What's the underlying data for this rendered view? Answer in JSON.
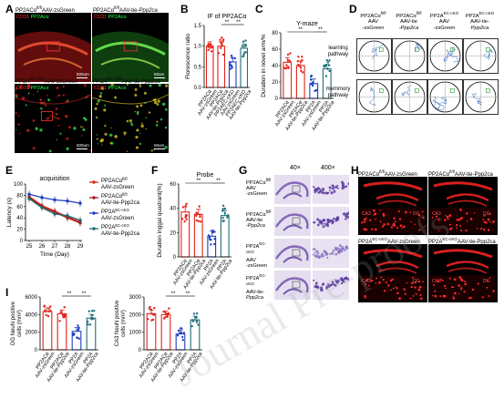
{
  "panels": {
    "A": {
      "letter": "A",
      "tiles": [
        {
          "header_parts": [
            "PP2ACα",
            "fl/fl",
            "AAV-zsGreen"
          ],
          "channel_left": "CD31",
          "channel_right": "PP2Acα",
          "scale": "500um",
          "kind": "wide-red"
        },
        {
          "header_parts": [
            "PP2ACα",
            "fl/fl",
            "AAV-tie-",
            "Ppp2ca"
          ],
          "channel_left": "CD31",
          "channel_right": "PP2Acα",
          "scale": "50um",
          "kind": "wide-green"
        },
        {
          "header_parts": [
            "PP2A",
            "EC-cKO",
            "AAV-zsGreen"
          ],
          "channel_left": "CD31",
          "channel_right": "PP2Acα",
          "scale": "500um",
          "kind": "zoom-red"
        },
        {
          "header_parts": [
            "PP2A",
            "EC-cKO",
            "AAV-tie-",
            "Ppp2ca"
          ],
          "channel_left": "CD31",
          "channel_right": "PP2Acα",
          "scale": "50um",
          "kind": "zoom-yellow"
        }
      ]
    },
    "B": {
      "letter": "B",
      "chart_data": {
        "type": "bar",
        "title": "IF of PP2ACα",
        "ylabel": "Florescence ratio",
        "ylim": [
          0,
          1.5
        ],
        "yticks": [
          "1.5",
          "1.0",
          "0.5",
          "0.0"
        ],
        "categories": [
          "PP2ACα fl/fl AAV-zsGreen",
          "PP2ACα fl/fl AAV-tie-Ppp2ca",
          "PP2A EC-cKO AAV-zsGreen",
          "PP2A EC-cKO AAV-tie-Ppp2ca"
        ],
        "category_tick_labels": [
          "PP2ACα",
          "PP2ACα",
          "PP2AEC-cKO",
          "PP2AEC-cKO"
        ],
        "category_tick_sublabels": [
          "AAV-zsGreen",
          "AAV-tie-Ppp2ca",
          "AAV-zsGreen",
          "AAV-tie-Ppp2ca"
        ],
        "values": [
          1.0,
          1.0,
          0.62,
          0.95
        ],
        "significance": [
          {
            "from": 1,
            "to": 2,
            "label": "**"
          },
          {
            "from": 2,
            "to": 3,
            "label": "**"
          }
        ]
      }
    },
    "C": {
      "letter": "C",
      "chart_data": {
        "type": "bar",
        "title": "Y-maze",
        "ylabel": "Duration in novel arm/%",
        "ylim": [
          0,
          80
        ],
        "yticks": [
          "80",
          "60",
          "40",
          "20",
          "0"
        ],
        "categories": [
          "PP2ACα fl/fl AAV-zsGreen",
          "PP2ACα fl/fl AAV-tie-Ppp2ca",
          "PP2A EC-cKO AAV-zsGreen",
          "PP2A EC-cKO AAV-tie-Ppp2ca"
        ],
        "category_tick_labels": [
          "PP2ACα",
          "PP2ACα",
          "PP2A",
          "PP2A"
        ],
        "category_tick_sublabels": [
          "AAV-zsGreen",
          "AAV-tie-Ppp2ca",
          "AAV-zsGreen",
          "AAV-tie-Ppp2ca"
        ],
        "values": [
          44,
          40,
          18,
          36
        ],
        "significance": [
          {
            "from": 0,
            "to": 2,
            "label": "**"
          },
          {
            "from": 2,
            "to": 3,
            "label": "**"
          }
        ]
      }
    },
    "D": {
      "letter": "D",
      "column_headers": [
        [
          "PP2ACα",
          "fl/fl",
          "AAV",
          "-zsGreen"
        ],
        [
          "PP2ACα",
          "fl/fl",
          "AAV-tie",
          "-Ppp2ca"
        ],
        [
          "PP2A",
          "EC-cKO",
          "AAV",
          "-zsGreen"
        ],
        [
          "PP2A",
          "EC-cKO",
          "AAV-tie-",
          "Ppp2ca"
        ]
      ],
      "row_labels": [
        [
          "learning",
          "pathway"
        ],
        [
          "memmory",
          "pathway"
        ]
      ]
    },
    "E": {
      "letter": "E",
      "chart_data": {
        "type": "line",
        "title": "acquisition",
        "xlabel": "Time (Day)",
        "ylabel": "Latency (s)",
        "x": [
          25,
          26,
          27,
          28,
          29
        ],
        "ylim": [
          0,
          100
        ],
        "yticks": [
          "100",
          "80",
          "60",
          "40",
          "20",
          "0"
        ],
        "xticks": [
          "25",
          "26",
          "27",
          "28",
          "29"
        ],
        "series": [
          {
            "name": "PP2ACα fl/fl AAV-zsGreen",
            "legend_parts": [
              "PP2ACα",
              "fl/fl",
              "AAV-zsGreen"
            ],
            "values": [
              78,
              62,
              52,
              42,
              33
            ],
            "color": "#e2231a"
          },
          {
            "name": "PP2ACα fl/fl AAV-tie-Ppp2ca",
            "legend_parts": [
              "PP2ACα",
              "fl/fl",
              "AAV-tie-Ppp2ca"
            ],
            "values": [
              76,
              60,
              50,
              40,
              31
            ],
            "color": "#a61a1a"
          },
          {
            "name": "PP2A EC-cKO AAV-zsGreen",
            "legend_parts": [
              "PP2A",
              "EC-cKO",
              "AAV-zsGreen"
            ],
            "values": [
              82,
              76,
              72,
              70,
              66
            ],
            "color": "#1f3fbf"
          },
          {
            "name": "PP2A EC-cKO AAV-tie-Ppp2ca",
            "legend_parts": [
              "PP2A",
              "EC-cKO",
              "AAV-tie-Ppp2ca"
            ],
            "values": [
              74,
              58,
              47,
              44,
              36
            ],
            "color": "#1e6e78"
          }
        ]
      }
    },
    "F": {
      "letter": "F",
      "chart_data": {
        "type": "bar",
        "title": "Probe",
        "ylabel": "Duration inggal quadrant(%)",
        "ylim": [
          0,
          60
        ],
        "yticks": [
          "60",
          "40",
          "20",
          "0"
        ],
        "categories": [
          "PP2ACα fl/fl AAV-zsGreen",
          "PP2ACα fl/fl AAV-tie-Ppp2ca",
          "PP2A EC-cKO AAV-zsGreen",
          "PP2A EC-cKO AAV-tie-Ppp2ca"
        ],
        "category_tick_labels": [
          "PP2ACα",
          "PP2ACα",
          "PP2A",
          "PP2A"
        ],
        "category_tick_sublabels": [
          "AAV-zsGreen",
          "AAV-tie-Ppp2ca",
          "AAV-zsGreen",
          "AAV-tie-Ppp2ca"
        ],
        "values": [
          37,
          35,
          17,
          34
        ],
        "significance": [
          {
            "from": 0,
            "to": 2,
            "label": "**"
          },
          {
            "from": 2,
            "to": 3,
            "label": "**"
          }
        ]
      }
    },
    "G": {
      "letter": "G",
      "column_headers": [
        "40×",
        "400×"
      ],
      "row_labels": [
        [
          "PP2ACα",
          "fl/fl",
          "AAV",
          "-zsGreen"
        ],
        [
          "PP2ACα",
          "fl/fl",
          "AAV-tie",
          "-Ppp2ca"
        ],
        [
          "PP2A",
          "EC-cKO",
          "AAV",
          "-zsGreen"
        ],
        [
          "PP2A",
          "EC-cKO",
          "AAV-tie-",
          "Ppp2ca"
        ]
      ]
    },
    "H": {
      "letter": "H",
      "tiles": [
        {
          "header_parts": [
            "PP2ACα",
            "fl/fl",
            "AAV-zsGreen"
          ],
          "region_left": "CA3",
          "region_right": "DG"
        },
        {
          "header_parts": [
            "PP2ACα",
            "fl/fl",
            "AAV-tie-Ppp2ca"
          ],
          "region_left": "CA3",
          "region_right": "DG"
        },
        {
          "header_parts": [
            "PP2A",
            "EC-cKO",
            "AAV-zsGreen"
          ],
          "region_left": "CA3",
          "region_right": "DG"
        },
        {
          "header_parts": [
            "PP2A",
            "EC-cKO",
            "AAV-tie-Ppp2ca"
          ],
          "region_left": "CA3",
          "region_right": "DG"
        }
      ]
    },
    "I": {
      "letter": "I",
      "charts": [
        {
          "chart_data": {
            "type": "bar",
            "ylabel_lines": [
              "DG NeuN positive",
              "cells (mm²)"
            ],
            "ylim": [
              0,
              6000
            ],
            "yticks": [
              "6000",
              "4000",
              "2000",
              "0"
            ],
            "categories": [
              "PP2ACα fl/fl AAV-zsGreen",
              "PP2ACα fl/fl AAV-tie-Ppp2ca",
              "PP2A EC-cKO AAV-zsGreen",
              "PP2A EC-cKO AAV-tie-Ppp2ca"
            ],
            "category_tick_labels": [
              "PP2ACα",
              "PP2ACα",
              "PP2A",
              "PP2A"
            ],
            "category_tick_sublabels": [
              "AAV-zsGreen",
              "AAV-tie-Ppp2ca",
              "AAV-zsGreen",
              "AAV-tie-Ppp2ca"
            ],
            "values": [
              4350,
              4100,
              2100,
              3600
            ],
            "significance": [
              {
                "from": 1,
                "to": 2,
                "label": "**"
              },
              {
                "from": 2,
                "to": 3,
                "label": "**"
              }
            ]
          }
        },
        {
          "chart_data": {
            "type": "bar",
            "ylabel_lines": [
              "CA3 NeuN positive",
              "cells (mm²)"
            ],
            "ylim": [
              0,
              3000
            ],
            "yticks": [
              "3000",
              "2000",
              "1000",
              "0"
            ],
            "categories": [
              "PP2ACα fl/fl AAV-zsGreen",
              "PP2ACα fl/fl AAV-tie-Ppp2ca",
              "PP2A EC-cKO AAV-zsGreen",
              "PP2A EC-cKO AAV-tie-Ppp2ca"
            ],
            "category_tick_labels": [
              "PP2ACα",
              "PP2ACα",
              "PP2A",
              "PP2A"
            ],
            "category_tick_sublabels": [
              "AAV-zsGreen",
              "AAV-tie-Ppp2ca",
              "AAV-zsGreen",
              "AAV-tie-Ppp2ca"
            ],
            "values": [
              2050,
              2000,
              900,
              1700
            ],
            "significance": [
              {
                "from": 1,
                "to": 2,
                "label": "**"
              },
              {
                "from": 2,
                "to": 3,
                "label": "**"
              }
            ]
          }
        }
      ]
    }
  },
  "colors": {
    "red": "#e2231a",
    "dark_red": "#a61a1a",
    "blue": "#1f3fbf",
    "teal": "#1e6e78",
    "channel_red": "#ff2a2a",
    "channel_green": "#2aff4a"
  },
  "watermark": "Journal Pre-proofs"
}
